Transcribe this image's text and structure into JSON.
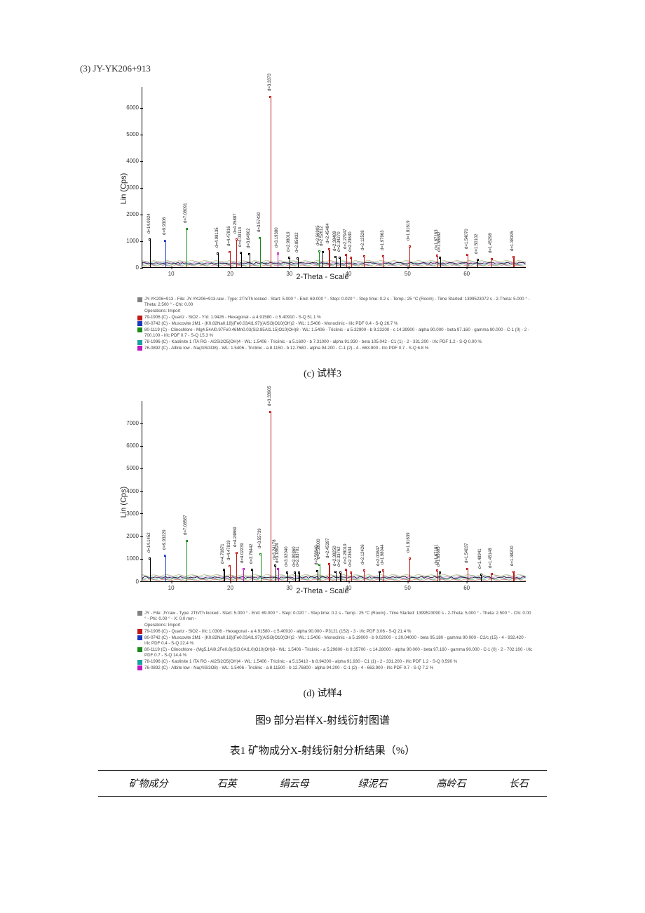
{
  "sample_top": {
    "label": "(3) JY-YK206+913",
    "chart": {
      "type": "xrd-line",
      "ylabel": "Lin (Cps)",
      "xlabel": "2-Theta - Scale",
      "xlim": [
        5,
        70
      ],
      "ylim": [
        0,
        6800
      ],
      "yticks": [
        0,
        1000,
        2000,
        3000,
        4000,
        5000,
        6000
      ],
      "ytick_labels": [
        "0",
        "1000",
        "2000",
        "3000",
        "4000",
        "5000",
        "6000"
      ],
      "xticks": [
        10,
        20,
        30,
        40,
        50,
        60
      ],
      "xtick_labels": [
        "10",
        "20",
        "30",
        "40",
        "50",
        "60"
      ],
      "baseline_color": "#000000",
      "noise_colors": [
        "#c01818",
        "#1a8a1a",
        "#1838c0",
        "#c018c0",
        "#18a0a0",
        "#a08018"
      ],
      "background": "#ffffff",
      "dominant_peak_color": "#c01818",
      "peaks": [
        {
          "two_theta": 6.3,
          "intensity": 1050,
          "d": "d=14.0924",
          "color": "#000000"
        },
        {
          "two_theta": 8.9,
          "intensity": 1000,
          "d": "d=9.9306",
          "color": "#1838c0"
        },
        {
          "two_theta": 12.5,
          "intensity": 1450,
          "d": "d=7.08091",
          "color": "#1a8a1a"
        },
        {
          "two_theta": 17.8,
          "intensity": 520,
          "d": "d=4.98135",
          "color": "#000000"
        },
        {
          "two_theta": 19.8,
          "intensity": 580,
          "d": "d=4.47816",
          "color": "#c01818"
        },
        {
          "two_theta": 20.9,
          "intensity": 1050,
          "d": "d=4.25887",
          "color": "#c01818"
        },
        {
          "two_theta": 21.7,
          "intensity": 560,
          "d": "d=4.09114",
          "color": "#000000"
        },
        {
          "two_theta": 23.1,
          "intensity": 500,
          "d": "d=3.84902",
          "color": "#000000"
        },
        {
          "two_theta": 24.9,
          "intensity": 1120,
          "d": "d=3.57430",
          "color": "#1a8a1a"
        },
        {
          "two_theta": 26.7,
          "intensity": 6400,
          "d": "d=3.3373",
          "color": "#c01818"
        },
        {
          "two_theta": 27.9,
          "intensity": 520,
          "d": "d=3.19380",
          "color": "#c018c0"
        },
        {
          "two_theta": 29.9,
          "intensity": 380,
          "d": "d=2.98019",
          "color": "#000000"
        },
        {
          "two_theta": 31.3,
          "intensity": 350,
          "d": "d=2.85832",
          "color": "#000000"
        },
        {
          "two_theta": 34.9,
          "intensity": 600,
          "d": "d=2.56905",
          "color": "#1a8a1a"
        },
        {
          "two_theta": 35.5,
          "intensity": 580,
          "d": "d=2.52612",
          "color": "#000000"
        },
        {
          "two_theta": 36.6,
          "intensity": 680,
          "d": "d=2.45484",
          "color": "#c01818"
        },
        {
          "two_theta": 37.7,
          "intensity": 400,
          "d": "d=2.38489",
          "color": "#000000"
        },
        {
          "two_theta": 38.4,
          "intensity": 380,
          "d": "d=2.34270",
          "color": "#000000"
        },
        {
          "two_theta": 39.5,
          "intensity": 480,
          "d": "d=2.27947",
          "color": "#c01818"
        },
        {
          "two_theta": 40.3,
          "intensity": 380,
          "d": "d=2.23630",
          "color": "#c01818"
        },
        {
          "two_theta": 42.5,
          "intensity": 420,
          "d": "d=2.12528",
          "color": "#c01818"
        },
        {
          "two_theta": 45.8,
          "intensity": 430,
          "d": "d=1.97963",
          "color": "#c01818"
        },
        {
          "two_theta": 50.2,
          "intensity": 780,
          "d": "d=1.81619",
          "color": "#c01818"
        },
        {
          "two_theta": 54.9,
          "intensity": 460,
          "d": "d=1.67163",
          "color": "#c01818"
        },
        {
          "two_theta": 55.4,
          "intensity": 370,
          "d": "d=1.65682",
          "color": "#000000"
        },
        {
          "two_theta": 60.0,
          "intensity": 480,
          "d": "d=1.54070",
          "color": "#c01818"
        },
        {
          "two_theta": 61.7,
          "intensity": 300,
          "d": "d=1.50102",
          "color": "#000000"
        },
        {
          "two_theta": 64.1,
          "intensity": 310,
          "d": "d=1.45298",
          "color": "#c01818"
        },
        {
          "two_theta": 67.8,
          "intensity": 400,
          "d": "d=1.38195",
          "color": "#c01818"
        }
      ]
    },
    "legend": {
      "lines": [
        {
          "color": "#808080",
          "text": "JY-YK206+913 - File: JY-YK206+913.raw - Type: 2Th/Th locked - Start: 5.000 ° - End: 69.000 ° - Step: 0.020 ° - Step time: 0.2 s - Temp.: 25 °C (Room) - Time Started: 1399523072 s - 2-Theta: 5.000 ° - Theta: 2.500 ° - Chi: 0.00"
        },
        {
          "color": "",
          "text": "Operations: Import"
        },
        {
          "color": "#c01818",
          "text": "79-1906 (C) - Quartz - SiO2 - Y/d: 1.9426 - Hexagonal - a 4.91580 - c 5.40910 - S-Q 51.1 %"
        },
        {
          "color": "#1838c0",
          "text": "80-0742 (C) - Muscovite 2M1 - (K0.82Na0.18)(Fe0.03Al1.97)(AlSi3)O10(OH)2 - WL: 1.5406 - Monoclinic - I/Ic PDF 0.4 - S-Q 26.7 %"
        },
        {
          "color": "#1a8a1a",
          "text": "80-1119 (C) - Clinochlore - Mg4.54Al0.97Fe0.46Mn0.03(Si2.85Al1.15)O10(OH)8 - WL: 1.5406 - Triclinic - a 5.32900 - b 9.23200 - c 14.39900 - alpha 90.000 - beta 97.160 - gamma 90.000 - C-1 (0) - 2 - 700.100 - I/Ic PDF 0.7 - S-Q 15.3 %"
        },
        {
          "color": "#18a0a0",
          "text": "78-1996 (C) - Kaolinite 1 ITA RG - Al2Si2O5(OH)4 - WL: 1.5406 - Triclinic - a 5.1600 - b 7.31000 - alpha 91.930 - beta 105.042 - C1 (1) - 2 - 331.200 - I/Ic PDF 1.2 - S-Q 0.00 %"
        },
        {
          "color": "#c018c0",
          "text": "76-0892 (C) - Albite low - Na(AlSi3O8) - WL: 1.5406 - Triclinic - a 8.1150 - b 12.7680 - alpha 94.200 - C-1 (2) - 4 - 663.900 - I/Ic PDF 0.7 - S-Q 6.8 %"
        }
      ]
    },
    "sub_caption": "(c)  试样3"
  },
  "sample_bottom": {
    "chart": {
      "type": "xrd-line",
      "ylabel": "Lin (Cps)",
      "xlabel": "2-Theta - Scale",
      "xlim": [
        5,
        70
      ],
      "ylim": [
        0,
        8000
      ],
      "yticks": [
        0,
        1000,
        2000,
        3000,
        4000,
        5000,
        6000,
        7000
      ],
      "ytick_labels": [
        "0",
        "1000",
        "2000",
        "3000",
        "4000",
        "5000",
        "6000",
        "7000"
      ],
      "xticks": [
        10,
        20,
        30,
        40,
        50,
        60
      ],
      "xtick_labels": [
        "10",
        "20",
        "30",
        "40",
        "50",
        "60"
      ],
      "baseline_color": "#000000",
      "noise_colors": [
        "#c01818",
        "#1a8a1a",
        "#1838c0",
        "#c018c0",
        "#18a0a0",
        "#a08018"
      ],
      "background": "#ffffff",
      "dominant_peak_color": "#c01818",
      "peaks": [
        {
          "two_theta": 6.3,
          "intensity": 1000,
          "d": "d=14.1452",
          "color": "#000000"
        },
        {
          "two_theta": 8.9,
          "intensity": 1150,
          "d": "d=9.93229",
          "color": "#1838c0"
        },
        {
          "two_theta": 12.5,
          "intensity": 1800,
          "d": "d=7.08587",
          "color": "#1a8a1a"
        },
        {
          "two_theta": 18.8,
          "intensity": 520,
          "d": "d=4.70871",
          "color": "#000000"
        },
        {
          "two_theta": 19.8,
          "intensity": 660,
          "d": "d=4.47819",
          "color": "#c01818"
        },
        {
          "two_theta": 20.9,
          "intensity": 1250,
          "d": "d=4.24869",
          "color": "#c01818"
        },
        {
          "two_theta": 22.1,
          "intensity": 540,
          "d": "d=4.02239",
          "color": "#c018c0"
        },
        {
          "two_theta": 23.6,
          "intensity": 520,
          "d": "d=3.76442",
          "color": "#000000"
        },
        {
          "two_theta": 25.0,
          "intensity": 1200,
          "d": "d=3.55739",
          "color": "#1a8a1a"
        },
        {
          "two_theta": 26.7,
          "intensity": 7500,
          "d": "d=3.33905",
          "color": "#c01818"
        },
        {
          "two_theta": 27.5,
          "intensity": 700,
          "d": "d=3.24178",
          "color": "#000000"
        },
        {
          "two_theta": 28.0,
          "intensity": 560,
          "d": "d=3.18824",
          "color": "#c018c0"
        },
        {
          "two_theta": 29.5,
          "intensity": 400,
          "d": "d=3.02040",
          "color": "#000000"
        },
        {
          "two_theta": 30.8,
          "intensity": 380,
          "d": "d=2.90360",
          "color": "#000000"
        },
        {
          "two_theta": 31.5,
          "intensity": 380,
          "d": "d=2.83701",
          "color": "#000000"
        },
        {
          "two_theta": 34.6,
          "intensity": 460,
          "d": "d=2.58940",
          "color": "#000000"
        },
        {
          "two_theta": 35.0,
          "intensity": 750,
          "d": "d=2.56000",
          "color": "#1a8a1a"
        },
        {
          "two_theta": 36.6,
          "intensity": 780,
          "d": "d=2.45397",
          "color": "#c01818"
        },
        {
          "two_theta": 37.7,
          "intensity": 420,
          "d": "d=2.38250",
          "color": "#000000"
        },
        {
          "two_theta": 38.5,
          "intensity": 400,
          "d": "d=2.33762",
          "color": "#000000"
        },
        {
          "two_theta": 39.5,
          "intensity": 520,
          "d": "d=2.28019",
          "color": "#c01818"
        },
        {
          "two_theta": 40.3,
          "intensity": 400,
          "d": "d=2.23634",
          "color": "#c01818"
        },
        {
          "two_theta": 42.5,
          "intensity": 500,
          "d": "d=2.12426",
          "color": "#c01818"
        },
        {
          "two_theta": 45.1,
          "intensity": 420,
          "d": "d=2.00847",
          "color": "#000000"
        },
        {
          "two_theta": 45.8,
          "intensity": 500,
          "d": "d=1.98044",
          "color": "#c01818"
        },
        {
          "two_theta": 50.2,
          "intensity": 1000,
          "d": "d=1.81639",
          "color": "#c01818"
        },
        {
          "two_theta": 54.9,
          "intensity": 500,
          "d": "d=1.67181",
          "color": "#c01818"
        },
        {
          "two_theta": 55.3,
          "intensity": 400,
          "d": "d=1.65605",
          "color": "#000000"
        },
        {
          "two_theta": 60.0,
          "intensity": 560,
          "d": "d=1.54037",
          "color": "#c01818"
        },
        {
          "two_theta": 62.3,
          "intensity": 300,
          "d": "d=1.48941",
          "color": "#000000"
        },
        {
          "two_theta": 64.1,
          "intensity": 330,
          "d": "d=1.45148",
          "color": "#c01818"
        },
        {
          "two_theta": 67.8,
          "intensity": 440,
          "d": "d=1.38200",
          "color": "#c01818"
        }
      ]
    },
    "legend": {
      "lines": [
        {
          "color": "#808080",
          "text": "JY - File: JY.raw - Type: 2Th/Th locked - Start: 5.000 ° - End: 69.000 ° - Step: 0.020 ° - Step time: 0.2 s - Temp.: 25 °C (Room) - Time Started: 1399523090 s - 2-Theta: 5.000 ° - Theta: 2.500 ° - Chi: 0.00 ° - Phi: 0.00 ° - X: 0.0 mm -"
        },
        {
          "color": "",
          "text": "Operations: Import"
        },
        {
          "color": "#c01818",
          "text": "79-1906 (C) - Quartz - SiO2 - I/Ic 1.0306 - Hexagonal - a 4.91580 - c 5.40910 - alpha 90.000 - P3121 (152) - 3 - I/Ic PDF 3.06 - S-Q 21.4 %"
        },
        {
          "color": "#1838c0",
          "text": "80-0742 (C) - Muscovite 2M1 - (K0.82Na0.18)(Fe0.03Al1.97)(AlSi3)O10(OH)2 - WL: 1.5406 - Monoclinic - a 5.19000 - b 9.02000 - c 20.04000 - beta 95.180 - gamma 90.000 - C2/c (15) - 4 - 932.420 - I/Ic PDF 0.4 - S-Q 22.4 %"
        },
        {
          "color": "#1a8a1a",
          "text": "80-1119 (C) - Clinochlore - (Mg5.1Al0.2Fe0.6)(Si3.0Al1.0)O10(OH)8 - WL: 1.5406 - Triclinic - a 5.29800 - b 9.35700 - c 14.28000 - alpha 90.000 - beta 97.160 - gamma 90.000 - C-1 (0) - 2 - 702.100 - I/Ic PDF 0.7 - S-Q 14.4 %"
        },
        {
          "color": "#18a0a0",
          "text": "78-1996 (C) - Kaolinite 1 ITA RG - Al2Si2O5(OH)4 - WL: 1.5406 - Triclinic - a 5.15410 - b 8.94200 - alpha 91.930 - C1 (1) - 2 - 331.200 - I/Ic PDF 1.2 - S-Q 0.590 %"
        },
        {
          "color": "#c018c0",
          "text": "76-0892 (C) - Albite low - Na(AlSi3O8) - WL: 1.5406 - Triclinic - a 8.11500 - b 12.76800 - alpha 94.200 - C-1 (2) - 4 - 663.900 - I/Ic PDF 0.7 - S-Q 7.2 %"
        }
      ]
    },
    "sub_caption": "(d)  试样4"
  },
  "figure_caption": "图9  部分岩样X-射线衍射图谱",
  "table_caption": "表1  矿物成分X-射线衍射分析结果（%）",
  "table": {
    "headers": [
      "矿物成分",
      "石英",
      "绢云母",
      "绿泥石",
      "高岭石",
      "长石"
    ]
  }
}
